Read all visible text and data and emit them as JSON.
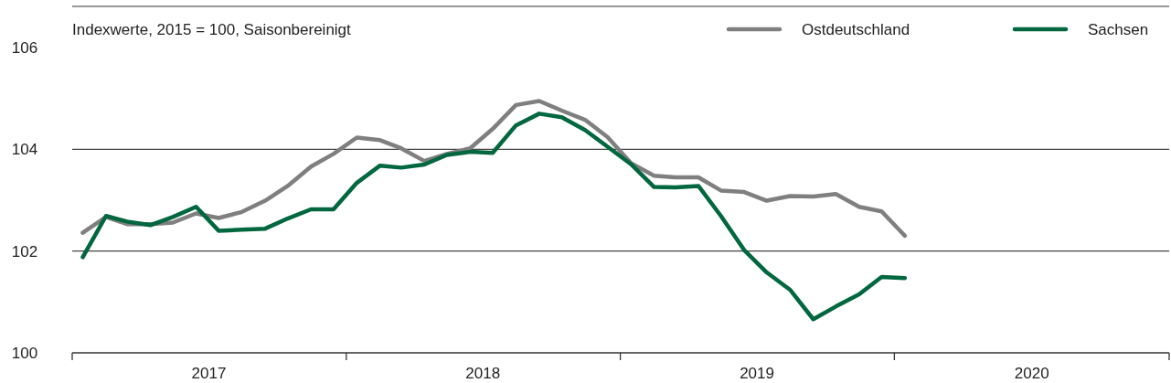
{
  "chart_data": {
    "type": "line",
    "title": "Indexwerte, 2015 = 100, Saisonbereinigt",
    "x": [
      "2017-01-15",
      "2017-02-15",
      "2017-03-15",
      "2017-04-15",
      "2017-05-15",
      "2017-06-15",
      "2017-07-15",
      "2017-08-15",
      "2017-09-15",
      "2017-10-15",
      "2017-11-15",
      "2017-12-15",
      "2018-01-15",
      "2018-02-15",
      "2018-03-15",
      "2018-04-15",
      "2018-05-15",
      "2018-06-15",
      "2018-07-15",
      "2018-08-15",
      "2018-09-15",
      "2018-10-15",
      "2018-11-15",
      "2018-12-15",
      "2019-01-15",
      "2019-02-15",
      "2019-03-15",
      "2019-04-15",
      "2019-05-15",
      "2019-06-15",
      "2019-07-15",
      "2019-08-15",
      "2019-09-15",
      "2019-10-15",
      "2019-11-15",
      "2019-12-15",
      "2020-01-15"
    ],
    "series": [
      {
        "name": "Ostdeutschland",
        "color": "#7f7f7f",
        "values": [
          102.36,
          102.67,
          102.53,
          102.53,
          102.56,
          102.74,
          102.65,
          102.77,
          102.99,
          103.28,
          103.66,
          103.91,
          104.23,
          104.18,
          104.02,
          103.77,
          103.91,
          104.02,
          104.4,
          104.87,
          104.95,
          104.76,
          104.58,
          104.24,
          103.73,
          103.48,
          103.45,
          103.45,
          103.19,
          103.16,
          102.99,
          103.08,
          103.07,
          103.12,
          102.87,
          102.78,
          102.3
        ]
      },
      {
        "name": "Sachsen",
        "color": "#00673f",
        "values": [
          101.88,
          102.69,
          102.58,
          102.51,
          102.67,
          102.87,
          102.4,
          102.42,
          102.44,
          102.64,
          102.82,
          102.82,
          103.34,
          103.68,
          103.64,
          103.7,
          103.89,
          103.95,
          103.93,
          104.47,
          104.7,
          104.63,
          104.38,
          104.05,
          103.71,
          103.26,
          103.25,
          103.28,
          102.69,
          102.02,
          101.58,
          101.24,
          100.66,
          100.91,
          101.15,
          101.49,
          101.47
        ]
      }
    ],
    "xlim": [
      "2017-01-01",
      "2021-01-01"
    ],
    "xticks": [
      {
        "value": "2017-01-01",
        "label": null
      },
      {
        "value": "2017-07-02",
        "label": "2017"
      },
      {
        "value": "2018-01-01",
        "label": null
      },
      {
        "value": "2018-07-02",
        "label": "2018"
      },
      {
        "value": "2019-01-01",
        "label": null
      },
      {
        "value": "2019-07-02",
        "label": "2019"
      },
      {
        "value": "2020-01-01",
        "label": null
      },
      {
        "value": "2020-07-02",
        "label": "2020"
      },
      {
        "value": "2021-01-01",
        "label": null
      }
    ],
    "ylim": [
      100,
      106
    ],
    "yticks": [
      100,
      102,
      104,
      106
    ],
    "grid": "y",
    "legend": "top right",
    "marker": "none",
    "line_style": "solid"
  }
}
